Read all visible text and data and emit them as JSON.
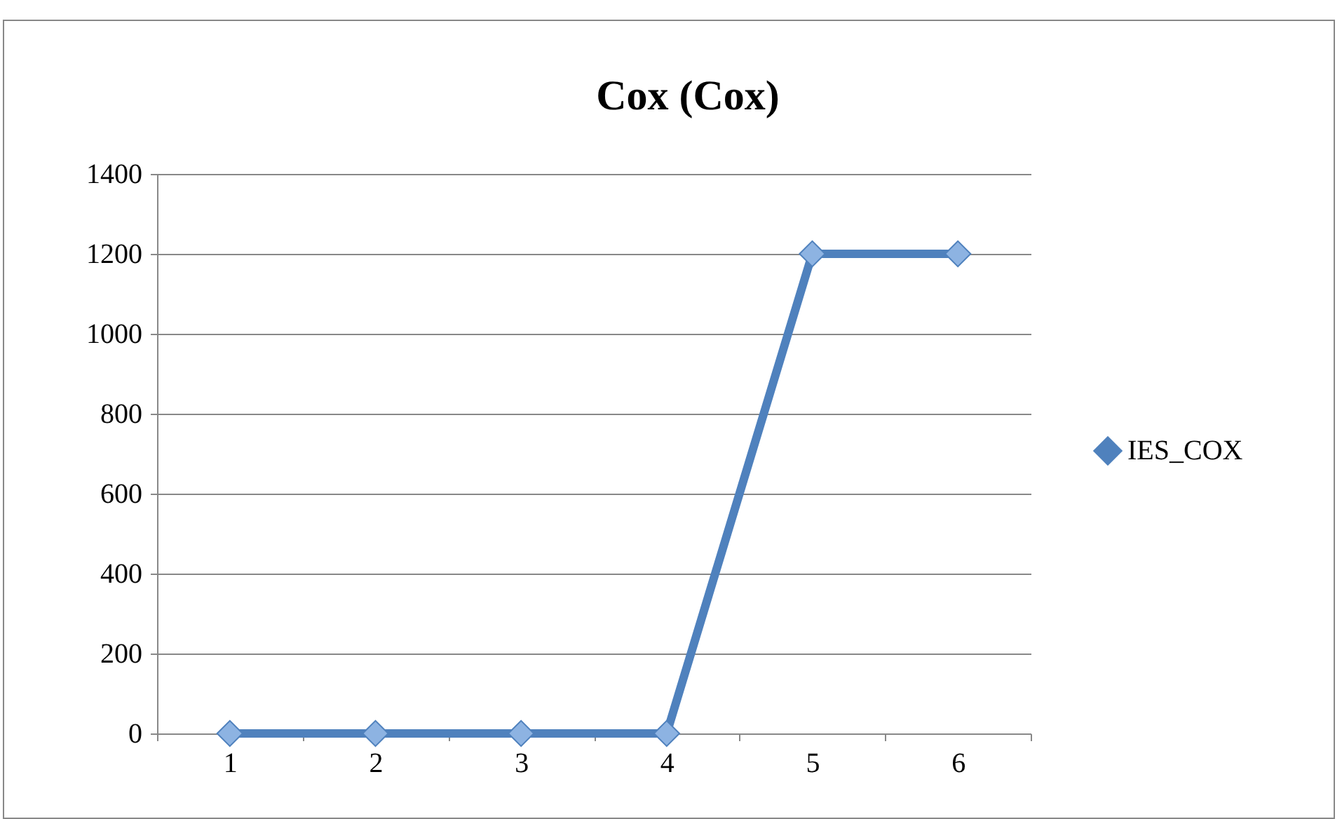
{
  "chart_data": {
    "type": "line",
    "title": "Cox (Cox)",
    "categories": [
      "1",
      "2",
      "3",
      "4",
      "5",
      "6"
    ],
    "series": [
      {
        "name": "IES_COX",
        "color": "#4f81bd",
        "values": [
          0,
          0,
          0,
          0,
          1200,
          1200
        ]
      }
    ],
    "ylim": [
      0,
      1400
    ],
    "yticks": [
      0,
      200,
      400,
      600,
      800,
      1000,
      1200,
      1400
    ],
    "grid": "y",
    "legend": "right",
    "marker": "diamond",
    "line_style": "solid"
  }
}
